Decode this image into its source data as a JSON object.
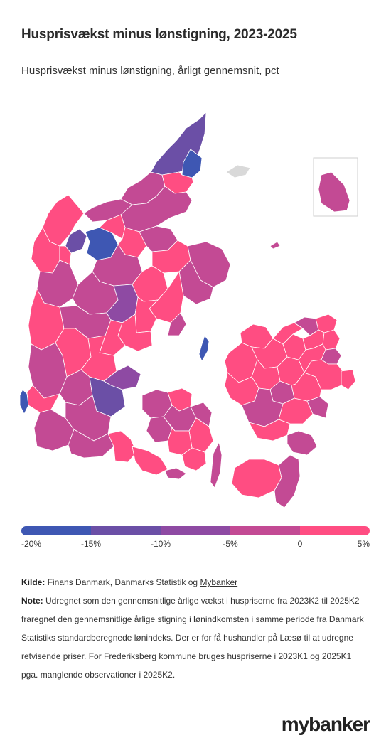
{
  "header": {
    "title": "Husprisvækst minus lønstigning, 2023-2025",
    "subtitle": "Husprisvækst minus lønstigning, årligt gennemsnit, pct"
  },
  "legend": {
    "ticks": [
      "-20%",
      "-15%",
      "-10%",
      "-5%",
      "0",
      "5%"
    ],
    "colors": [
      "#3e57b3",
      "#6b4fa6",
      "#8e4aa3",
      "#c34a94",
      "#ff4d82"
    ]
  },
  "map": {
    "colors": {
      "blue": "#3e57b3",
      "violet": "#6b4fa6",
      "purple": "#8e4aa3",
      "magenta": "#c34a94",
      "pink": "#ff4d82",
      "na": "#d9d9d9"
    }
  },
  "footer": {
    "source_label": "Kilde:",
    "source_text": "Finans Danmark, Danmarks Statistik og",
    "source_link": "Mybanker",
    "note_label": "Note:",
    "note_text": "Udregnet som den gennemsnitlige årlige vækst i huspriserne fra 2023K2 til 2025K2 fraregnet den gennemsnitlige årlige stigning i lønindkomsten i samme periode fra Danmark Statistiks standardberegnede lønindeks. Der er for få hushandler på Læsø til at udregne retvisende priser. For Frederiksberg kommune bruges huspriserne i 2023K1 og 2025K1 pga. manglende observationer i 2025K2.",
    "logo": "mybanker"
  }
}
